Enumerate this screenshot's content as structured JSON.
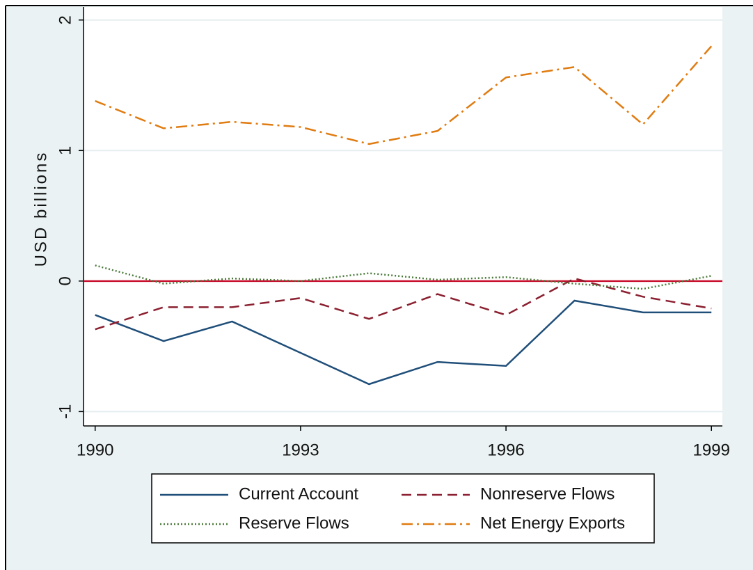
{
  "chart_data": {
    "type": "line",
    "y_label": "USD billions",
    "x": [
      1990,
      1991,
      1992,
      1993,
      1994,
      1995,
      1996,
      1997,
      1998,
      1999
    ],
    "xlim": [
      1989.83,
      1999.16
    ],
    "xticks": [
      1990,
      1993,
      1996,
      1999
    ],
    "ylim": [
      -1.11,
      2.1
    ],
    "yticks": [
      -1,
      0,
      1,
      2
    ],
    "grid": true,
    "reference_line": {
      "value": 0,
      "color": "#c8102e"
    },
    "series": [
      {
        "name": "Current Account",
        "color": "#1f4e79",
        "dash": "solid",
        "values": [
          -0.26,
          -0.46,
          -0.31,
          -0.55,
          -0.79,
          -0.62,
          -0.65,
          -0.15,
          -0.24,
          -0.24
        ]
      },
      {
        "name": "Nonreserve Flows",
        "color": "#8b2030",
        "dash": "dash",
        "values": [
          -0.37,
          -0.2,
          -0.2,
          -0.13,
          -0.29,
          -0.1,
          -0.26,
          0.02,
          -0.12,
          -0.21
        ]
      },
      {
        "name": "Reserve Flows",
        "color": "#4a7a3a",
        "dash": "dot",
        "values": [
          0.12,
          -0.02,
          0.02,
          0,
          0.06,
          0.01,
          0.03,
          -0.02,
          -0.06,
          0.04
        ]
      },
      {
        "name": "Net Energy Exports",
        "color": "#e07b10",
        "dash": "dashdot",
        "values": [
          1.38,
          1.17,
          1.22,
          1.18,
          1.05,
          1.15,
          1.56,
          1.64,
          1.2,
          1.8
        ]
      }
    ]
  }
}
